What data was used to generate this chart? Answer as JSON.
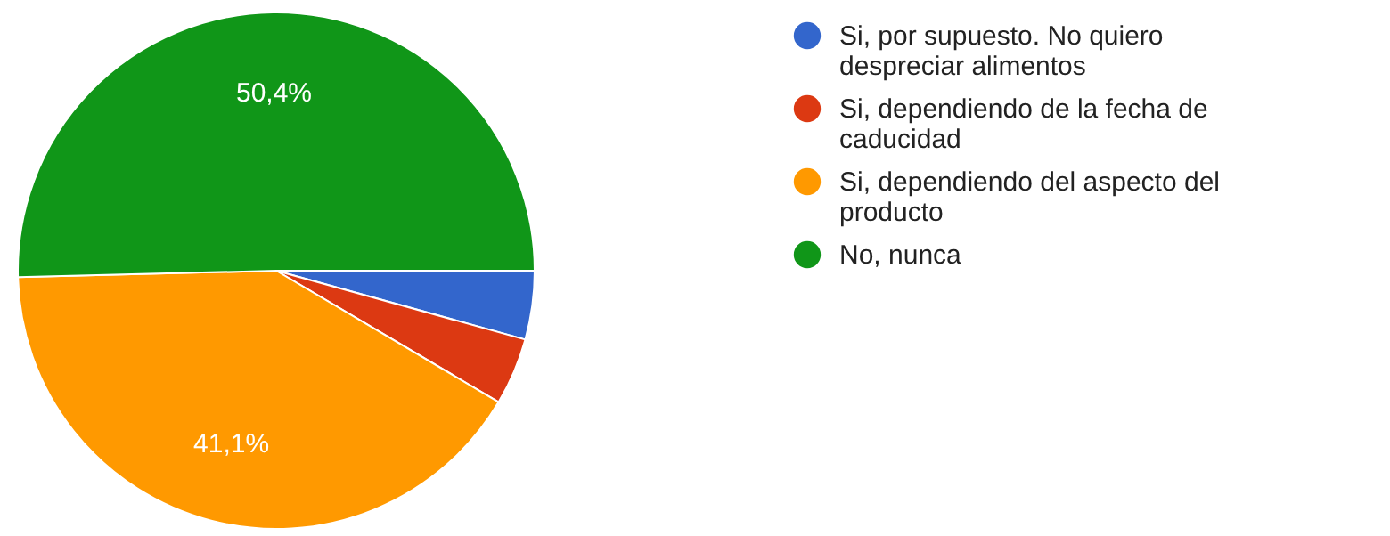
{
  "chart_data": {
    "type": "pie",
    "categories": [
      "Si, por supuesto. No quiero despreciar alimentos",
      "Si, dependiendo de la fecha de caducidad",
      "Si, dependiendo del aspecto del producto",
      "No, nunca"
    ],
    "values": [
      4.3,
      4.2,
      41.1,
      50.4
    ],
    "colors": [
      "#3366cc",
      "#dc3912",
      "#ff9900",
      "#109618"
    ],
    "value_labels": [
      null,
      null,
      "41,1%",
      "50,4%"
    ],
    "legend": "right"
  }
}
